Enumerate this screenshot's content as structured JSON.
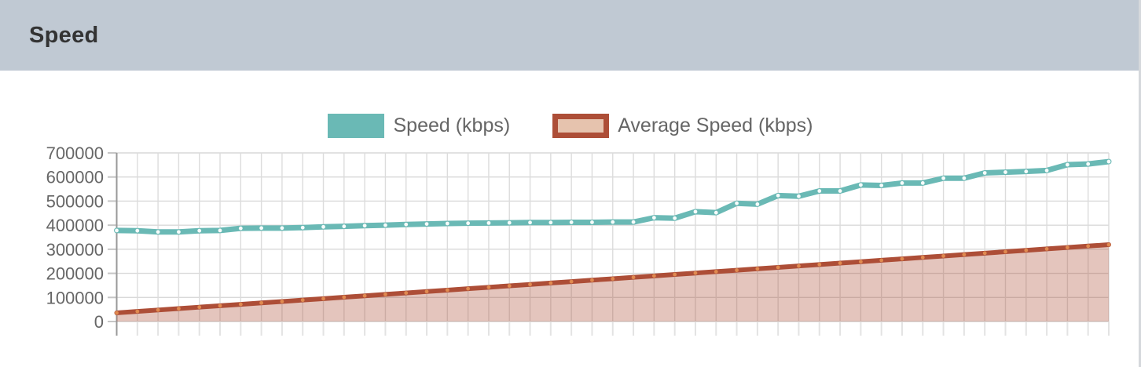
{
  "header": {
    "title": "Speed"
  },
  "legend": [
    {
      "label": "Speed (kbps)",
      "swatch_fill": "#6ab9b5",
      "swatch_border": null
    },
    {
      "label": "Average Speed (kbps)",
      "swatch_fill": "#e6c3ae",
      "swatch_border": "#ad4e37"
    }
  ],
  "colors": {
    "header_background": "#c0c9d3",
    "header_text": "#333333",
    "axis_label_text": "#666666",
    "legend_text": "#666666",
    "gridline": "#dcdcdc",
    "axis_line": "#999999",
    "speed_series": "#6ab9b5",
    "average_series": "#ad4e37",
    "average_fill": "rgba(173,78,55,0.33)"
  },
  "chart_data": {
    "type": "line",
    "title": "",
    "xlabel": "",
    "ylabel": "",
    "ylim": [
      0,
      700000
    ],
    "y_ticks": [
      700000,
      600000,
      500000,
      400000,
      300000,
      200000,
      100000,
      0
    ],
    "x_axis_labels_visible": false,
    "grid": true,
    "legend_position": "top-center",
    "series": [
      {
        "name": "Speed (kbps)",
        "type": "line",
        "color": "#6ab9b5",
        "marker_color": "#ffffff",
        "values": [
          378000,
          377000,
          372000,
          372000,
          377000,
          378000,
          387000,
          388000,
          388000,
          390000,
          393000,
          395000,
          398000,
          400000,
          403000,
          405000,
          407000,
          408000,
          409000,
          410000,
          411000,
          411000,
          412000,
          412000,
          413000,
          413000,
          431000,
          429000,
          456000,
          452000,
          491000,
          487000,
          523000,
          520000,
          542000,
          542000,
          567000,
          565000,
          575000,
          575000,
          595000,
          595000,
          617000,
          620000,
          623000,
          627000,
          651000,
          654000,
          664000
        ]
      },
      {
        "name": "Average Speed (kbps)",
        "type": "area",
        "color": "#ad4e37",
        "fill_color": "rgba(173,78,55,0.33)",
        "marker_color": "#e08a50",
        "values": [
          36000,
          41900,
          47800,
          53700,
          59600,
          65500,
          71400,
          77300,
          83200,
          89100,
          95000,
          100900,
          106800,
          112700,
          118600,
          124500,
          130400,
          136300,
          142200,
          148100,
          154000,
          159900,
          165800,
          171700,
          177600,
          183500,
          189400,
          195300,
          201200,
          207100,
          213000,
          218900,
          224800,
          230700,
          236600,
          242500,
          248400,
          254300,
          260200,
          266100,
          272000,
          277900,
          283800,
          289700,
          295600,
          301500,
          307400,
          313300,
          319000
        ]
      }
    ]
  }
}
